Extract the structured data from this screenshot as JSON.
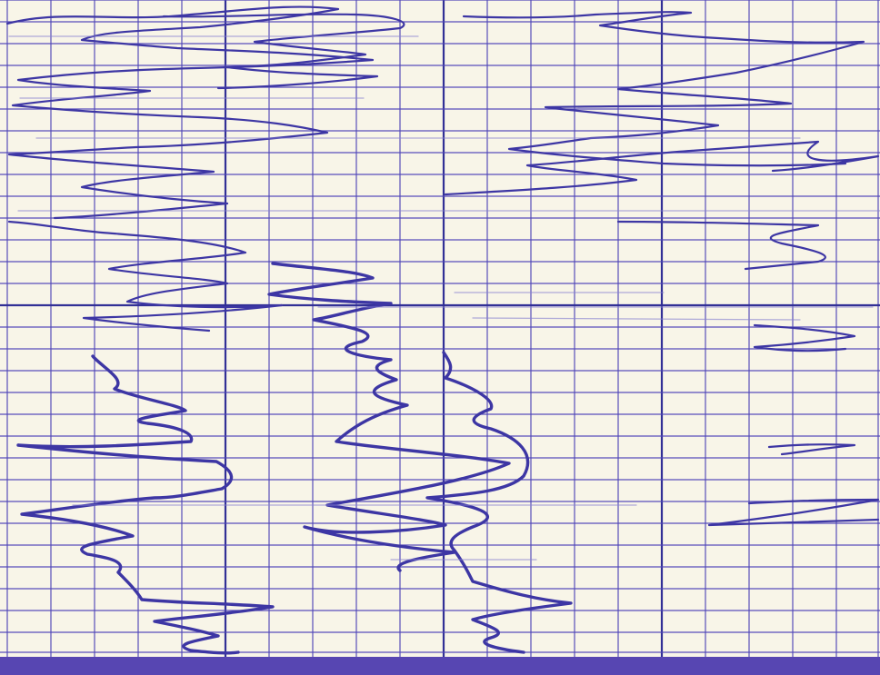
{
  "colors": {
    "paper": "#f8f5e8",
    "grid_minor": "#4f46b8",
    "grid_major": "#2f2d95",
    "trace_main": "#3d36a4",
    "trace_soft": "#8580cf",
    "bottom_bar": "#5746b2"
  }
}
